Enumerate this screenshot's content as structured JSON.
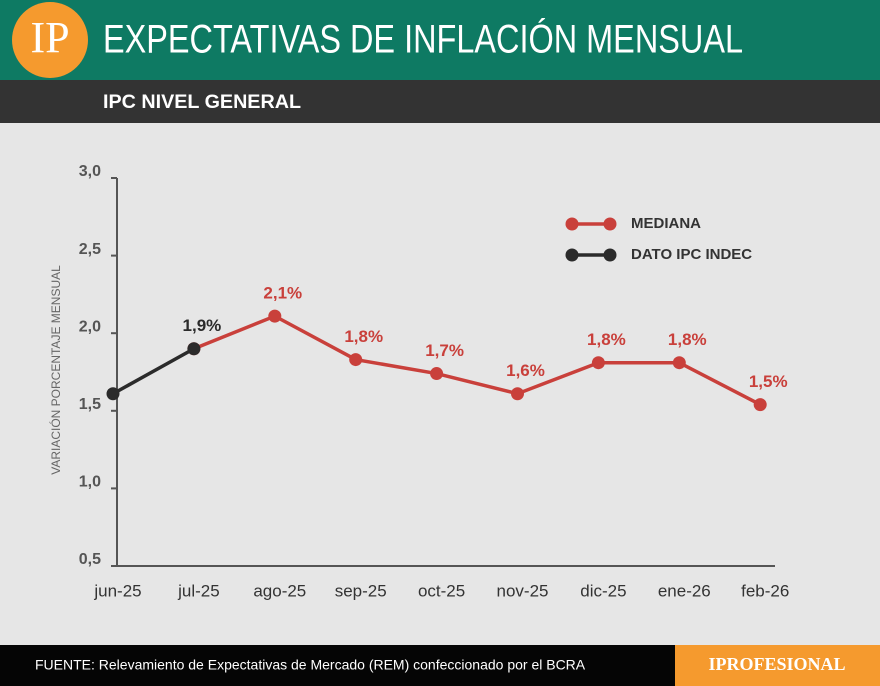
{
  "logo": "IP",
  "chart_data": {
    "type": "line",
    "title": "EXPECTATIVAS DE INFLACIÓN MENSUAL",
    "subtitle": "IPC NIVEL GENERAL",
    "y_label": "VARIACIÓN  PORCENTAJE  MENSUAL",
    "categories": [
      "jun-25",
      "jul-25",
      "ago-25",
      "sep-25",
      "oct-25",
      "nov-25",
      "dic-25",
      "ene-26",
      "feb-26"
    ],
    "series": [
      {
        "name": "MEDIANA",
        "color": "#c9403b",
        "values": [
          null,
          1.9,
          2.11,
          1.83,
          1.74,
          1.61,
          1.81,
          1.81,
          1.54
        ],
        "value_labels": [
          null,
          null,
          "2,1%",
          "1,8%",
          "1,7%",
          "1,6%",
          "1,8%",
          "1,8%",
          "1,5%"
        ]
      },
      {
        "name": "DATO IPC INDEC",
        "color": "#2b2b2b",
        "values": [
          1.61,
          1.9,
          null,
          null,
          null,
          null,
          null,
          null,
          null
        ],
        "value_labels": [
          null,
          "1,9%",
          null,
          null,
          null,
          null,
          null,
          null,
          null
        ]
      }
    ],
    "ylim": [
      0.5,
      3.0
    ],
    "yticks": [
      {
        "value": 0.5,
        "label": "0,5"
      },
      {
        "value": 1.0,
        "label": "1,0"
      },
      {
        "value": 1.5,
        "label": "1,5"
      },
      {
        "value": 2.0,
        "label": "2,0"
      },
      {
        "value": 2.5,
        "label": "2,5"
      },
      {
        "value": 3.0,
        "label": "3,0"
      }
    ],
    "grid": false,
    "legend": "top-right"
  },
  "footer": {
    "source": "FUENTE: Relevamiento de Expectativas de Mercado (REM) confeccionado por el BCRA",
    "brand": "IPROFESIONAL"
  }
}
